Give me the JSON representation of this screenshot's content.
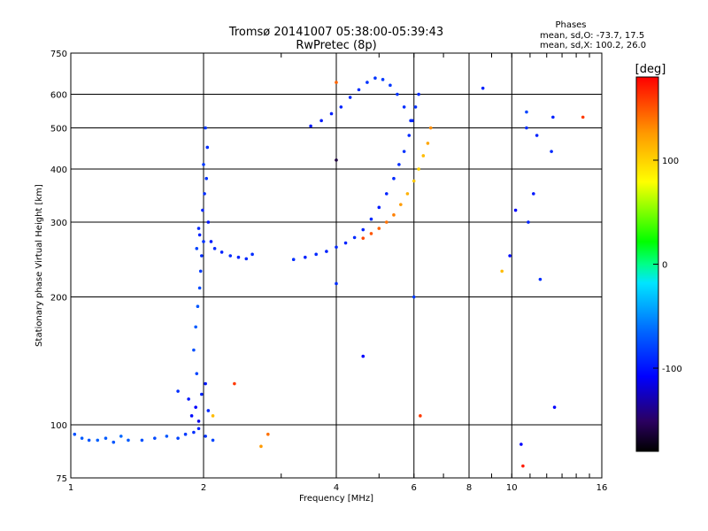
{
  "chart_data": {
    "type": "scatter",
    "title": "Tromsø 20141007 05:38:00-05:39:43",
    "subtitle": "RwPretec (8p)",
    "xlabel": "Frequency [MHz]",
    "ylabel": "Stationary phase Virtual Height [km]",
    "x_scale": "log",
    "y_scale": "log",
    "xlim": [
      1,
      16
    ],
    "ylim": [
      75,
      750
    ],
    "x_ticks": [
      1,
      2,
      4,
      6,
      8,
      10,
      16
    ],
    "y_ticks": [
      75,
      100,
      200,
      300,
      400,
      500,
      600,
      750
    ],
    "phases_box": {
      "heading": "Phases",
      "line1": "mean, sd,O: -73.7, 17.5",
      "line2": "mean, sd,X: 100.2, 26.0"
    },
    "colorbar": {
      "label": "[deg]",
      "range": [
        -180,
        180
      ],
      "ticks": [
        100,
        0,
        -100
      ]
    },
    "series": [
      {
        "comment_points": "phase in degrees",
        "points": [
          [
            1.02,
            95,
            -75
          ],
          [
            1.06,
            93,
            -70
          ],
          [
            1.1,
            92,
            -72
          ],
          [
            1.15,
            92,
            -68
          ],
          [
            1.2,
            93,
            -70
          ],
          [
            1.25,
            91,
            -72
          ],
          [
            1.3,
            94,
            -65
          ],
          [
            1.35,
            92,
            -70
          ],
          [
            1.45,
            92,
            -75
          ],
          [
            1.55,
            93,
            -78
          ],
          [
            1.65,
            94,
            -72
          ],
          [
            1.75,
            93,
            -80
          ],
          [
            1.82,
            95,
            -85
          ],
          [
            1.9,
            96,
            -90
          ],
          [
            1.95,
            98,
            -95
          ],
          [
            2.02,
            94,
            -88
          ],
          [
            2.1,
            92,
            -80
          ],
          [
            1.75,
            120,
            -90
          ],
          [
            1.85,
            115,
            -100
          ],
          [
            1.92,
            110,
            -110
          ],
          [
            1.98,
            118,
            -95
          ],
          [
            2.02,
            125,
            -100
          ],
          [
            1.88,
            105,
            -105
          ],
          [
            1.95,
            102,
            -115
          ],
          [
            2.05,
            108,
            -92
          ],
          [
            1.93,
            132,
            -80
          ],
          [
            1.9,
            150,
            -75
          ],
          [
            1.92,
            170,
            -70
          ],
          [
            1.94,
            190,
            -72
          ],
          [
            1.96,
            210,
            -78
          ],
          [
            1.97,
            230,
            -85
          ],
          [
            1.98,
            250,
            -90
          ],
          [
            2.0,
            270,
            -88
          ],
          [
            1.95,
            290,
            -92
          ],
          [
            1.99,
            320,
            -95
          ],
          [
            2.01,
            350,
            -90
          ],
          [
            2.03,
            380,
            -88
          ],
          [
            2.0,
            410,
            -85
          ],
          [
            2.04,
            450,
            -90
          ],
          [
            2.02,
            500,
            -86
          ],
          [
            1.93,
            260,
            -80
          ],
          [
            1.96,
            280,
            -95
          ],
          [
            2.05,
            300,
            -100
          ],
          [
            2.08,
            270,
            -98
          ],
          [
            2.12,
            260,
            -92
          ],
          [
            2.2,
            255,
            -95
          ],
          [
            2.3,
            250,
            -92
          ],
          [
            2.4,
            248,
            -95
          ],
          [
            2.5,
            246,
            -92
          ],
          [
            2.58,
            252,
            -90
          ],
          [
            3.2,
            245,
            -90
          ],
          [
            3.4,
            248,
            -95
          ],
          [
            3.6,
            252,
            -92
          ],
          [
            3.8,
            256,
            -96
          ],
          [
            4.0,
            262,
            -92
          ],
          [
            4.2,
            268,
            -95
          ],
          [
            4.4,
            276,
            -92
          ],
          [
            4.6,
            288,
            -95
          ],
          [
            4.8,
            305,
            -92
          ],
          [
            5.0,
            325,
            -98
          ],
          [
            5.2,
            350,
            -95
          ],
          [
            5.4,
            380,
            -92
          ],
          [
            5.55,
            410,
            -90
          ],
          [
            5.7,
            440,
            -88
          ],
          [
            5.85,
            480,
            -92
          ],
          [
            5.95,
            520,
            -95
          ],
          [
            6.05,
            560,
            -90
          ],
          [
            6.15,
            600,
            -92
          ],
          [
            3.5,
            505,
            -100
          ],
          [
            3.7,
            520,
            -98
          ],
          [
            3.9,
            540,
            -96
          ],
          [
            4.1,
            560,
            -95
          ],
          [
            4.3,
            590,
            -92
          ],
          [
            4.5,
            615,
            -90
          ],
          [
            4.7,
            640,
            -88
          ],
          [
            4.9,
            655,
            -86
          ],
          [
            5.1,
            650,
            -84
          ],
          [
            5.3,
            630,
            -86
          ],
          [
            5.5,
            600,
            -88
          ],
          [
            5.7,
            560,
            -90
          ],
          [
            5.9,
            520,
            -92
          ],
          [
            4.6,
            275,
            155
          ],
          [
            4.8,
            282,
            150
          ],
          [
            5.0,
            290,
            145
          ],
          [
            5.2,
            300,
            140
          ],
          [
            5.4,
            312,
            135
          ],
          [
            5.6,
            330,
            125
          ],
          [
            5.8,
            350,
            115
          ],
          [
            6.0,
            375,
            105
          ],
          [
            6.15,
            400,
            100
          ],
          [
            6.3,
            430,
            110
          ],
          [
            6.45,
            460,
            120
          ],
          [
            6.55,
            500,
            130
          ],
          [
            10.5,
            90,
            -110
          ],
          [
            10.8,
            500,
            -90
          ],
          [
            11.4,
            480,
            -95
          ],
          [
            10.9,
            300,
            -95
          ],
          [
            11.2,
            350,
            -100
          ],
          [
            11.6,
            220,
            -90
          ],
          [
            12.4,
            530,
            -95
          ],
          [
            12.3,
            440,
            -92
          ],
          [
            12.5,
            110,
            -110
          ],
          [
            14.5,
            530,
            160
          ],
          [
            9.9,
            250,
            -105
          ],
          [
            10.2,
            320,
            -110
          ],
          [
            8.6,
            620,
            -95
          ],
          [
            9.5,
            230,
            110
          ],
          [
            10.8,
            545,
            -80
          ],
          [
            10.6,
            80,
            170
          ],
          [
            4.0,
            420,
            -160
          ],
          [
            4.0,
            640,
            145
          ],
          [
            4.0,
            215,
            -90
          ],
          [
            6.2,
            105,
            160
          ],
          [
            6.0,
            200,
            -85
          ],
          [
            4.6,
            145,
            -110
          ],
          [
            2.1,
            105,
            110
          ],
          [
            2.35,
            125,
            160
          ],
          [
            2.8,
            95,
            140
          ],
          [
            2.7,
            89,
            125
          ]
        ]
      }
    ]
  }
}
